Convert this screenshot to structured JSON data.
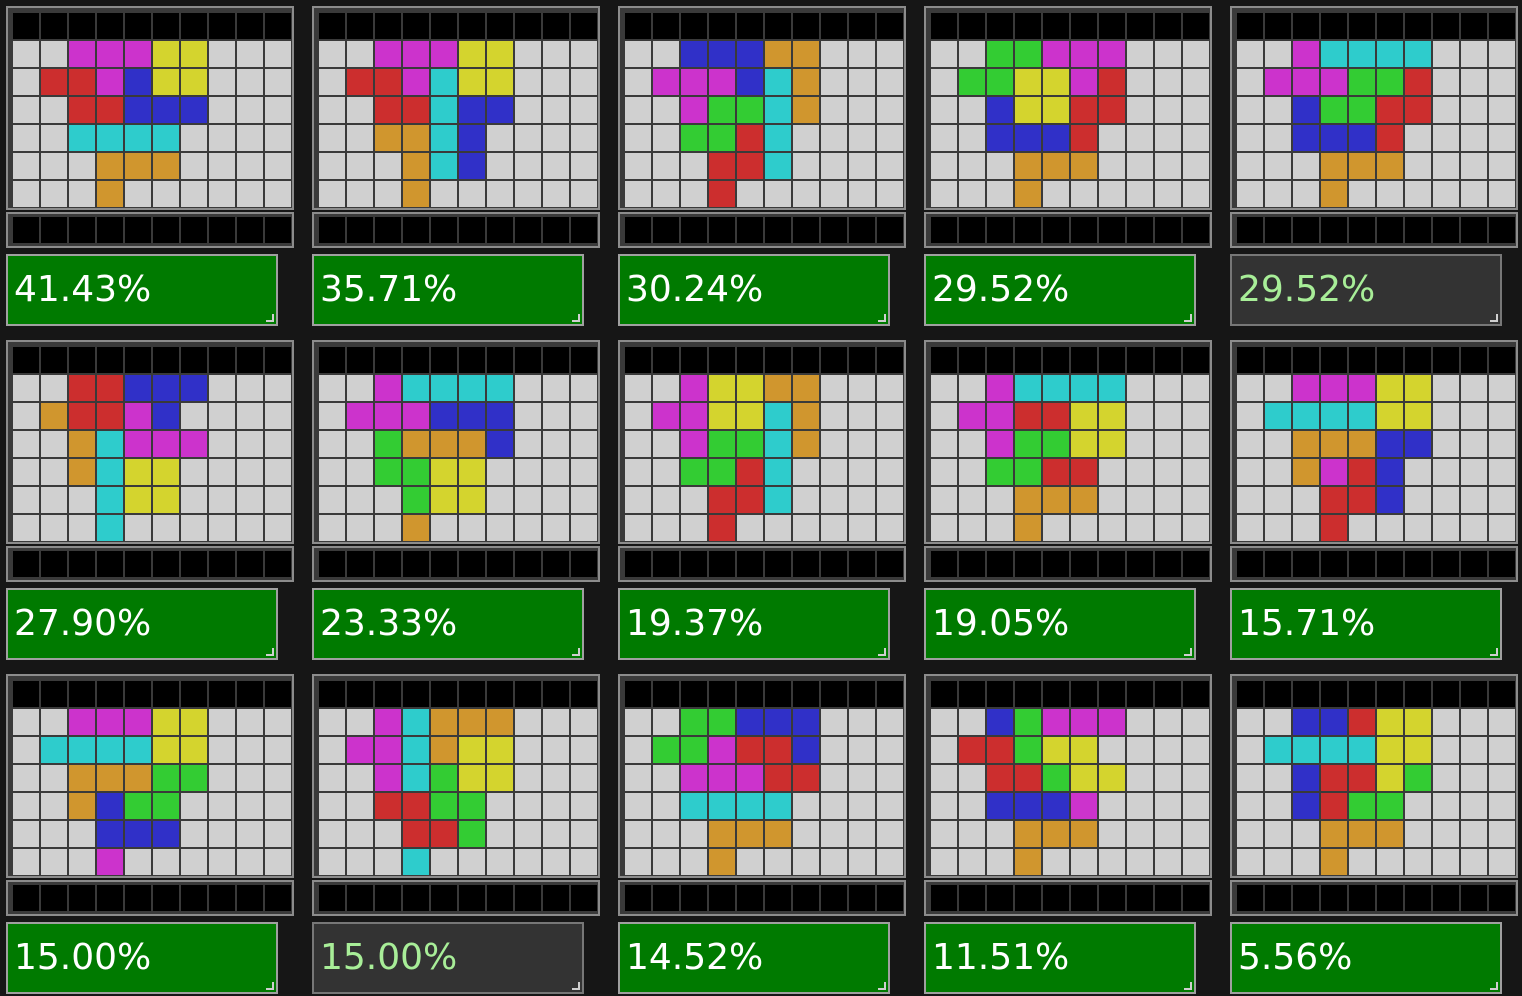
{
  "colors": {
    "K": "#000000",
    "W": "#d0d0d0",
    "M": "#cc33cc",
    "Y": "#d4d42e",
    "R": "#cc2e2e",
    "B": "#3030c8",
    "C": "#2ecccc",
    "O": "#d0962e",
    "G": "#33cc33"
  },
  "score_colors": {
    "active": "#007a00",
    "inactive": "#333333"
  },
  "cards": [
    {
      "score": "41.43%",
      "active": true,
      "rows": [
        "KKKKKKKKKK",
        "WWMMMYYWWW",
        "WRRMBYYWWW",
        "WWRRBBBWWW",
        "WWCCCCWWWW",
        "WWWOOOWWWW",
        "WWWOWWWWWW"
      ]
    },
    {
      "score": "35.71%",
      "active": true,
      "rows": [
        "KKKKKKKKKK",
        "WWMMMYYWWW",
        "WRRMCYYWWW",
        "WWRRCBBWWW",
        "WWOOCBWWWW",
        "WWWOCBWWWW",
        "WWWOWWWWWW"
      ]
    },
    {
      "score": "30.24%",
      "active": true,
      "rows": [
        "KKKKKKKKKK",
        "WWBBBOOWWW",
        "WMMMBCOWWW",
        "WWMGGCOWWW",
        "WWGGRCWWWW",
        "WWWRRCWWWW",
        "WWWRWWWWWW"
      ]
    },
    {
      "score": "29.52%",
      "active": true,
      "rows": [
        "KKKKKKKKKK",
        "WWGGMMMWWW",
        "WGGYYMRWWW",
        "WWBYYRRWWW",
        "WWBBBRWWWW",
        "WWWOOOWWWW",
        "WWWOWWWWWW"
      ]
    },
    {
      "score": "29.52%",
      "active": false,
      "rows": [
        "KKKKKKKKKK",
        "WWMCCCCWWW",
        "WMMMGGRWWW",
        "WWBGGRRWWW",
        "WWBBBRWWWW",
        "WWWOOOWWWW",
        "WWWOWWWWWW"
      ]
    },
    {
      "score": "27.90%",
      "active": true,
      "rows": [
        "KKKKKKKKKK",
        "WWRRBBBWWW",
        "WORRMBWWWW",
        "WWOCMMMWWW",
        "WWOCYYWWWW",
        "WWWCYYWWWW",
        "WWWCWWWWWW"
      ]
    },
    {
      "score": "23.33%",
      "active": true,
      "rows": [
        "KKKKKKKKKK",
        "WWMCCCCWWW",
        "WMMMBBBWWW",
        "WWGOOOBWWW",
        "WWGGYYWWWW",
        "WWWGYYWWWW",
        "WWWOWWWWWW"
      ]
    },
    {
      "score": "19.37%",
      "active": true,
      "rows": [
        "KKKKKKKKKK",
        "WWMYYOOWWW",
        "WMMYYCOWWW",
        "WWMGGCOWWW",
        "WWGGRCWWWW",
        "WWWRRCWWWW",
        "WWWRWWWWWW"
      ]
    },
    {
      "score": "19.05%",
      "active": true,
      "rows": [
        "KKKKKKKKKK",
        "WWMCCCCWWW",
        "WMMRRYYWWW",
        "WWMGGYYWWW",
        "WWGGRRWWWW",
        "WWWOOOWWWW",
        "WWWOWWWWWW"
      ]
    },
    {
      "score": "15.71%",
      "active": true,
      "rows": [
        "KKKKKKKKKK",
        "WWMMMYYWWW",
        "WCCCCYYWWW",
        "WWOOOBBWWW",
        "WWOMRBWWWW",
        "WWWRRBWWWW",
        "WWWRWWWWWW"
      ]
    },
    {
      "score": "15.00%",
      "active": true,
      "rows": [
        "KKKKKKKKKK",
        "WWMMMYYWWW",
        "WCCCCYYWWW",
        "WWOOOGGWWW",
        "WWOBGGWWWW",
        "WWWBBBWWWW",
        "WWWMWWWWWW"
      ]
    },
    {
      "score": "15.00%",
      "active": false,
      "rows": [
        "KKKKKKKKKK",
        "WWMCOOOWWW",
        "WMMCOYYWWW",
        "WWMCGYYWWW",
        "WWRRGGWWWW",
        "WWWRRGWWWW",
        "WWWCWWWWWW"
      ]
    },
    {
      "score": "14.52%",
      "active": true,
      "rows": [
        "KKKKKKKKKK",
        "WWGGBBBWWW",
        "WGGMRRBWWW",
        "WWMMMRRWWW",
        "WWCCCCWWWW",
        "WWWOOOWWWW",
        "WWWOWWWWWW"
      ]
    },
    {
      "score": "11.51%",
      "active": true,
      "rows": [
        "KKKKKKKKKK",
        "WWBGMMMWWW",
        "WRRGYYWWWW",
        "WWRRGYYWWW",
        "WWBBBMWWWW",
        "WWWOOOWWWW",
        "WWWOWWWWWW"
      ]
    },
    {
      "score": "5.56%",
      "active": true,
      "rows": [
        "KKKKKKKKKK",
        "WWBBRYYWWW",
        "WCCCCYYWWW",
        "WWBRRYGWWW",
        "WWBRGGWWWW",
        "WWWOOOWWWW",
        "WWWOWWWWWW"
      ]
    }
  ]
}
